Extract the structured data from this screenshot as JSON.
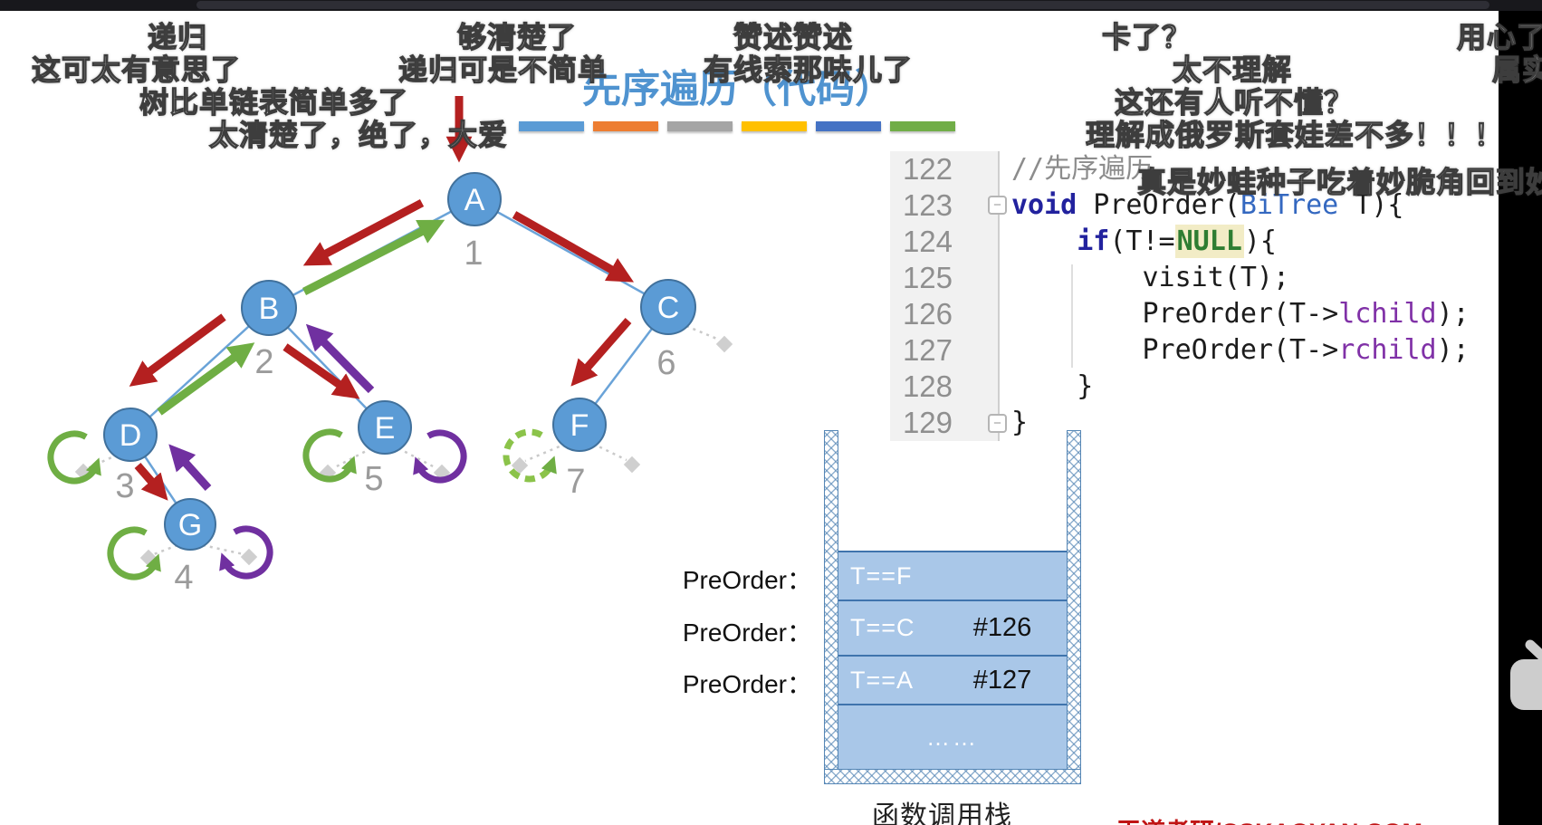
{
  "title": "先序遍历（代码）",
  "theme_bars": [
    "#5b9bd5",
    "#ed7d31",
    "#a5a5a5",
    "#ffc000",
    "#4472c4",
    "#70ad47"
  ],
  "danmaku": [
    "递归",
    "够清楚了",
    "赞述赞述",
    "卡了？",
    "用心了",
    "这可太有意思了",
    "递归可是不简单",
    "有线索那味儿了",
    "太不理解",
    "属实",
    "树比单链表简单多了",
    "这还有人听不懂？",
    "太清楚了，绝了，大爱",
    "理解成俄罗斯套娃差不多！！！",
    "真是妙蛙种子吃着妙脆角回到妙"
  ],
  "tree": {
    "nodes": [
      {
        "label": "A"
      },
      {
        "label": "B"
      },
      {
        "label": "C"
      },
      {
        "label": "D"
      },
      {
        "label": "E"
      },
      {
        "label": "F"
      },
      {
        "label": "G"
      }
    ],
    "edge_labels": [
      "1",
      "2",
      "3",
      "4",
      "5",
      "6",
      "7"
    ],
    "colors": {
      "node_fill": "#5b9bd5",
      "visit_arrow": "#b42020",
      "return_left_arrow": "#6fae44",
      "return_right_arrow": "#7030a0"
    }
  },
  "code": {
    "lines": [
      {
        "num": "122",
        "tokens": [
          [
            "comment",
            "//先序遍历"
          ]
        ]
      },
      {
        "num": "123",
        "tokens": [
          [
            "kw",
            "void"
          ],
          [
            "plain",
            " PreOrder("
          ],
          [
            "type",
            "BiTree"
          ],
          [
            "plain",
            " T){"
          ]
        ]
      },
      {
        "num": "124",
        "tokens": [
          [
            "plain",
            "    "
          ],
          [
            "kw",
            "if"
          ],
          [
            "plain",
            "(T!="
          ],
          [
            "null",
            "NULL"
          ],
          [
            "plain",
            "){"
          ]
        ]
      },
      {
        "num": "125",
        "tokens": [
          [
            "plain",
            "        visit(T);"
          ]
        ]
      },
      {
        "num": "126",
        "tokens": [
          [
            "plain",
            "        PreOrder(T->"
          ],
          [
            "field",
            "lchild"
          ],
          [
            "plain",
            ");"
          ]
        ]
      },
      {
        "num": "127",
        "tokens": [
          [
            "plain",
            "        PreOrder(T->"
          ],
          [
            "field",
            "rchild"
          ],
          [
            "plain",
            ");"
          ]
        ]
      },
      {
        "num": "128",
        "tokens": [
          [
            "plain",
            "    }"
          ]
        ]
      },
      {
        "num": "129",
        "tokens": [
          [
            "plain",
            "}"
          ]
        ]
      }
    ],
    "fold_marker": "−"
  },
  "stack": {
    "callers": [
      "PreOrder：",
      "PreOrder：",
      "PreOrder："
    ],
    "frames": [
      {
        "label": "T==F",
        "note": ""
      },
      {
        "label": "T==C",
        "note": "#126"
      },
      {
        "label": "T==A",
        "note": "#127"
      }
    ],
    "dots": "……",
    "caption": "函数调用栈"
  },
  "watermark": "王道考研/CSKAOYAN.COM"
}
